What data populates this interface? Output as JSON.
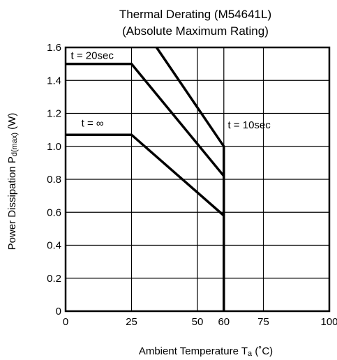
{
  "chart_data": {
    "type": "line",
    "title": "Thermal Derating (M54641L)",
    "subtitle": "(Absolute Maximum Rating)",
    "xlabel": "Ambient Temperature T",
    "xlabel_sub": "a",
    "xlabel_unit": " (˚C)",
    "ylabel": "Power Dissipation P",
    "ylabel_sub": "d(max)",
    "ylabel_unit": " (W)",
    "xlim": [
      0,
      100
    ],
    "ylim": [
      0,
      1.6
    ],
    "x_ticks": [
      {
        "value": 0,
        "label": "0"
      },
      {
        "value": 25,
        "label": "25"
      },
      {
        "value": 50,
        "label": "50"
      },
      {
        "value": 60,
        "label": "60"
      },
      {
        "value": 75,
        "label": "75"
      },
      {
        "value": 100,
        "label": "100"
      }
    ],
    "y_ticks": [
      {
        "value": 0,
        "label": "0"
      },
      {
        "value": 0.2,
        "label": "0.2"
      },
      {
        "value": 0.4,
        "label": "0.4"
      },
      {
        "value": 0.6,
        "label": "0.6"
      },
      {
        "value": 0.8,
        "label": "0.8"
      },
      {
        "value": 1.0,
        "label": "1.0"
      },
      {
        "value": 1.2,
        "label": "1.2"
      },
      {
        "value": 1.4,
        "label": "1.4"
      },
      {
        "value": 1.6,
        "label": "1.6"
      }
    ],
    "grid": true,
    "series": [
      {
        "name": "t = 20sec",
        "label_at": [
          2,
          1.53
        ],
        "points": [
          [
            0,
            1.5
          ],
          [
            25,
            1.5
          ],
          [
            60,
            0.82
          ]
        ]
      },
      {
        "name": "t = ∞",
        "label_at": [
          6,
          1.12
        ],
        "points": [
          [
            0,
            1.07
          ],
          [
            25,
            1.07
          ],
          [
            60,
            0.58
          ]
        ]
      },
      {
        "name": "t = 10sec",
        "label_at": [
          61.5,
          1.11
        ],
        "points": [
          [
            34.5,
            1.6
          ],
          [
            60,
            1.0
          ]
        ]
      }
    ],
    "cutoff": {
      "x": 60,
      "from": 0,
      "to": 1.0
    }
  }
}
